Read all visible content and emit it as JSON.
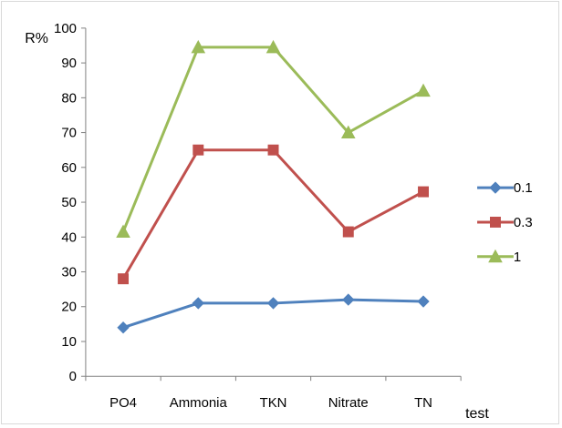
{
  "chart_data": {
    "type": "line",
    "title": "",
    "xlabel": "test",
    "ylabel": "R%",
    "categories": [
      "PO4",
      "Ammonia",
      "TKN",
      "Nitrate",
      "TN"
    ],
    "ylim": [
      0,
      100
    ],
    "yticks": [
      "0",
      "10",
      "20",
      "30",
      "40",
      "50",
      "60",
      "70",
      "80",
      "90",
      "100"
    ],
    "grid": false,
    "legend_position": "right",
    "series": [
      {
        "name": "0.1",
        "values": [
          14,
          21,
          21,
          22,
          21.5
        ],
        "color": "#4f81bd",
        "marker": "diamond"
      },
      {
        "name": "0.3",
        "values": [
          28,
          65,
          65,
          41.5,
          53
        ],
        "color": "#c0504d",
        "marker": "square"
      },
      {
        "name": "1",
        "values": [
          41.5,
          94.5,
          94.5,
          70,
          82
        ],
        "color": "#9bbb59",
        "marker": "triangle"
      }
    ]
  }
}
